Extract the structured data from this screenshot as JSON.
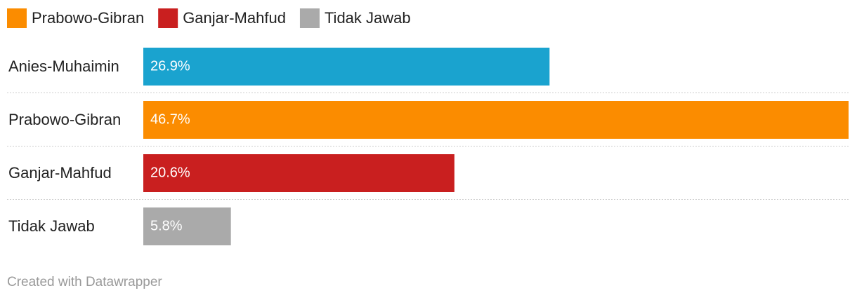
{
  "chart_data": {
    "type": "bar",
    "orientation": "horizontal",
    "legend": [
      {
        "name": "Prabowo-Gibran",
        "color": "#fb8c00"
      },
      {
        "name": "Ganjar-Mahfud",
        "color": "#c91f1f"
      },
      {
        "name": "Tidak Jawab",
        "color": "#aaaaaa"
      }
    ],
    "categories": [
      "Anies-Muhaimin",
      "Prabowo-Gibran",
      "Ganjar-Mahfud",
      "Tidak Jawab"
    ],
    "values": [
      26.9,
      46.7,
      20.6,
      5.8
    ],
    "value_labels": [
      "26.9%",
      "46.7%",
      "20.6%",
      "5.8%"
    ],
    "colors": [
      "#1aa3cf",
      "#fb8c00",
      "#c91f1f",
      "#aaaaaa"
    ],
    "xlim": [
      0,
      46.7
    ],
    "credit": "Created with Datawrapper"
  }
}
